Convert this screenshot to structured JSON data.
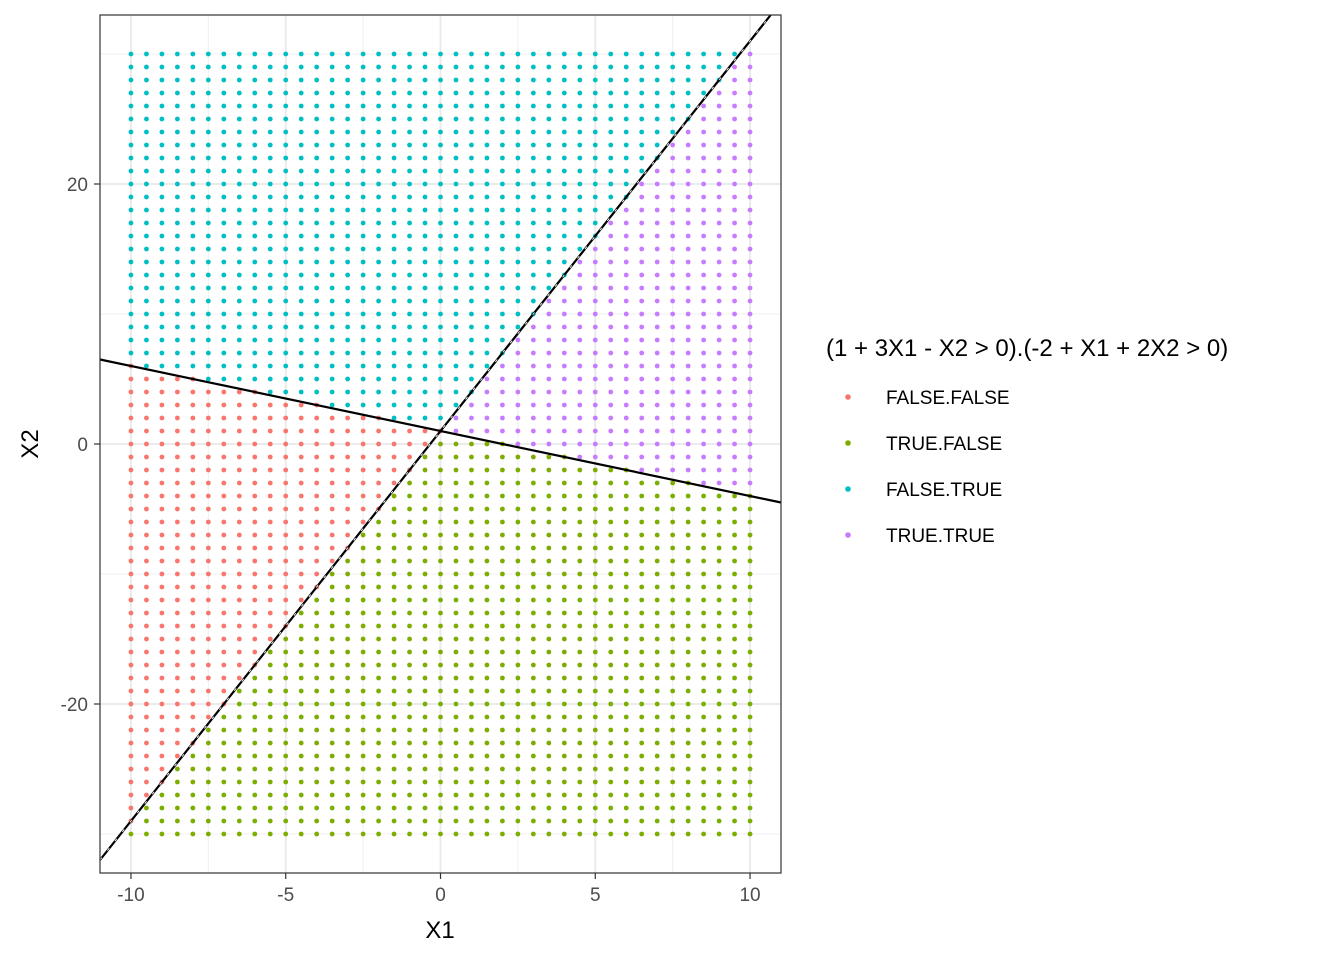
{
  "chart_data": {
    "type": "scatter",
    "xlabel": "X1",
    "ylabel": "X2",
    "xlim": [
      -11,
      11
    ],
    "ylim": [
      -33,
      33
    ],
    "x_ticks": [
      -10,
      -5,
      0,
      5,
      10
    ],
    "y_ticks": [
      -20,
      0,
      20
    ],
    "x_tick_labels": [
      "-10",
      "-5",
      "0",
      "5",
      "10"
    ],
    "y_tick_labels": [
      "-20",
      "0",
      "20"
    ],
    "grid": true,
    "theme": "bw",
    "point_grid": {
      "x_min": -10,
      "x_max": 10,
      "x_step": 0.5,
      "y_min": -30,
      "y_max": 30,
      "y_step": 1
    },
    "legend": {
      "title": "(1 + 3X1 - X2 > 0).(-2 + X1 + 2X2 > 0)",
      "placement": "right",
      "entries": [
        {
          "label": "FALSE.FALSE",
          "color": "#F8766D"
        },
        {
          "label": "TRUE.FALSE",
          "color": "#7CAE00"
        },
        {
          "label": "FALSE.TRUE",
          "color": "#00BFC4"
        },
        {
          "label": "TRUE.TRUE",
          "color": "#C77CFF"
        }
      ]
    },
    "series": [
      {
        "name": "FALSE.FALSE",
        "color": "#F8766D",
        "rule": "1 + 3*X1 - X2 <= 0 and -2 + X1 + 2*X2 <= 0"
      },
      {
        "name": "TRUE.FALSE",
        "color": "#7CAE00",
        "rule": "1 + 3*X1 - X2 > 0 and -2 + X1 + 2*X2 <= 0"
      },
      {
        "name": "FALSE.TRUE",
        "color": "#00BFC4",
        "rule": "1 + 3*X1 - X2 <= 0 and -2 + X1 + 2*X2 > 0"
      },
      {
        "name": "TRUE.TRUE",
        "color": "#C77CFF",
        "rule": "1 + 3*X1 - X2 > 0 and -2 + X1 + 2*X2 > 0"
      }
    ],
    "lines": [
      {
        "equation": "X2 = 1 + 3*X1",
        "intercept": 1,
        "slope": 3,
        "style": "dashed-over-solid",
        "color": "#000000"
      },
      {
        "equation": "X2 = 1 - 0.5*X1",
        "intercept": 1,
        "slope": -0.5,
        "style": "solid",
        "color": "#000000"
      }
    ]
  }
}
